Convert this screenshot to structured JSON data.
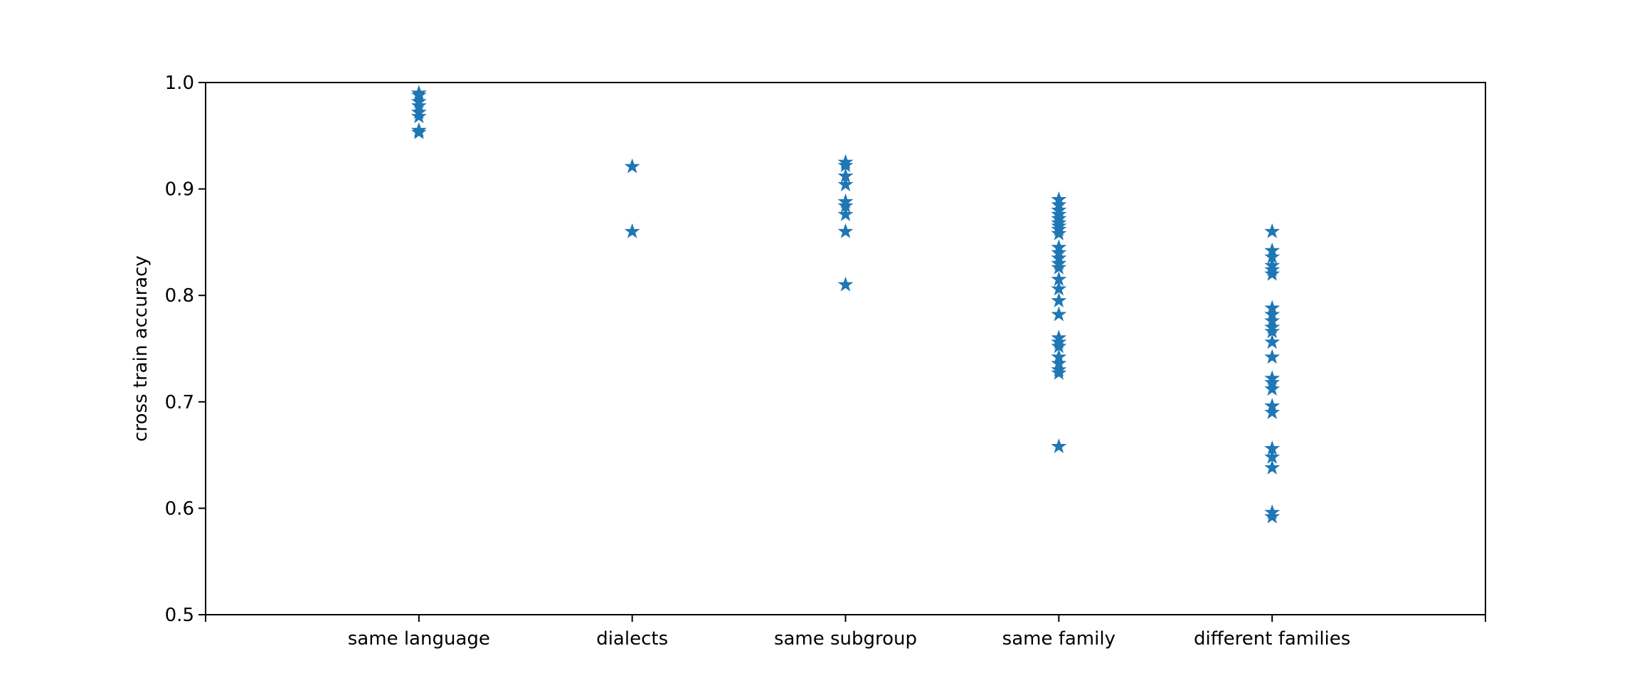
{
  "chart_data": {
    "type": "scatter",
    "marker": "star",
    "color": "#1f77b4",
    "categories": [
      "same language",
      "dialects",
      "same subgroup",
      "same family",
      "different families"
    ],
    "x_tick_positions": [
      -1,
      0,
      1,
      2,
      3,
      4,
      5
    ],
    "xlim": [
      -1,
      5
    ],
    "ylabel": "cross train accuracy",
    "ylim": [
      0.5,
      1.0
    ],
    "yticks": [
      "0.5",
      "0.6",
      "0.7",
      "0.8",
      "0.9",
      "1.0"
    ],
    "grid": false,
    "points_by_category": [
      [
        0.99,
        0.988,
        0.982,
        0.978,
        0.972,
        0.968,
        0.955,
        0.953
      ],
      [
        0.921,
        0.86
      ],
      [
        0.925,
        0.922,
        0.912,
        0.904,
        0.888,
        0.884,
        0.876,
        0.86,
        0.81
      ],
      [
        0.89,
        0.885,
        0.88,
        0.876,
        0.872,
        0.868,
        0.865,
        0.862,
        0.858,
        0.845,
        0.84,
        0.835,
        0.83,
        0.826,
        0.815,
        0.806,
        0.795,
        0.782,
        0.76,
        0.756,
        0.752,
        0.742,
        0.736,
        0.73,
        0.727,
        0.658
      ],
      [
        0.86,
        0.842,
        0.836,
        0.828,
        0.824,
        0.82,
        0.788,
        0.782,
        0.776,
        0.77,
        0.766,
        0.756,
        0.742,
        0.722,
        0.718,
        0.712,
        0.696,
        0.69,
        0.656,
        0.648,
        0.638,
        0.596,
        0.592
      ]
    ]
  }
}
